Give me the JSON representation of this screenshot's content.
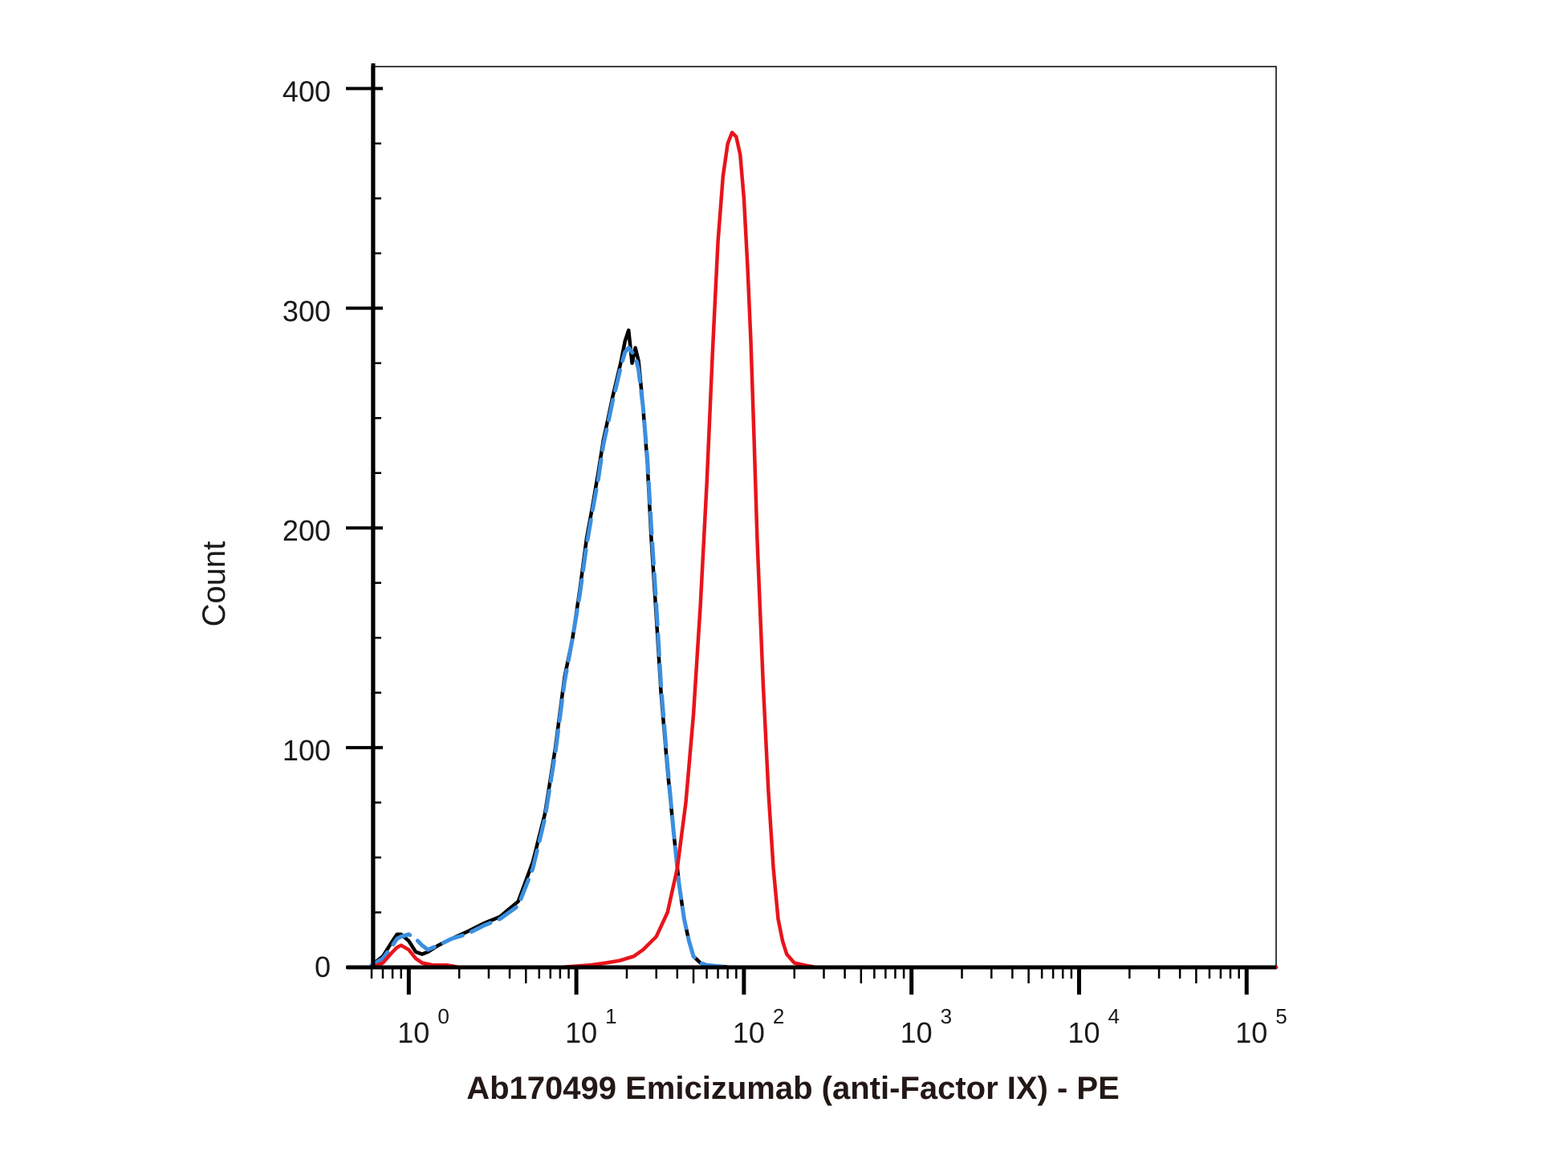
{
  "chart_data": {
    "type": "line",
    "xlabel": "Ab170499 Emicizumab (anti-Factor IX) - PE",
    "ylabel": "Count",
    "x_scale": "log",
    "xlim": [
      0.6,
      150000
    ],
    "ylim": [
      0,
      410
    ],
    "yticks": [
      {
        "value": 0,
        "label": "0"
      },
      {
        "value": 100,
        "label": "100"
      },
      {
        "value": 200,
        "label": "200"
      },
      {
        "value": 300,
        "label": "300"
      },
      {
        "value": 400,
        "label": "400"
      }
    ],
    "xticks": [
      {
        "value": 1,
        "base": "10",
        "exp": "0"
      },
      {
        "value": 10,
        "base": "10",
        "exp": "1"
      },
      {
        "value": 100,
        "base": "10",
        "exp": "2"
      },
      {
        "value": 1000,
        "base": "10",
        "exp": "3"
      },
      {
        "value": 10000,
        "base": "10",
        "exp": "4"
      },
      {
        "value": 100000,
        "base": "10",
        "exp": "5"
      }
    ],
    "grid": false,
    "series": [
      {
        "color": "#000000",
        "style": "solid",
        "x": [
          0.6,
          0.7,
          0.8,
          0.85,
          0.9,
          1.0,
          1.1,
          1.2,
          1.3,
          1.5,
          1.8,
          2.2,
          2.8,
          3.5,
          4.5,
          5.5,
          6.5,
          7.5,
          8.5,
          9.5,
          10.5,
          11.5,
          12.5,
          13.5,
          14.5,
          15.5,
          16.5,
          17.5,
          18.5,
          19.5,
          20.5,
          21.5,
          22.5,
          23.5,
          25,
          26.5,
          28,
          30,
          32,
          35,
          38,
          41,
          44,
          47,
          50,
          55,
          60,
          70,
          85,
          100,
          130,
          200,
          500,
          2000,
          10000,
          50000,
          150000
        ],
        "y": [
          1,
          5,
          12,
          15,
          15,
          12,
          7,
          6,
          7,
          10,
          13,
          16,
          20,
          23,
          30,
          48,
          70,
          100,
          132,
          150,
          172,
          195,
          210,
          225,
          240,
          250,
          260,
          268,
          276,
          285,
          290,
          275,
          282,
          276,
          255,
          230,
          195,
          160,
          125,
          90,
          62,
          38,
          22,
          12,
          5,
          2,
          1,
          0.5,
          0,
          0,
          0,
          0,
          0,
          0,
          0,
          0,
          0
        ]
      },
      {
        "color": "#3b8fdf",
        "style": "dashed",
        "x": [
          0.6,
          0.7,
          0.8,
          0.85,
          0.9,
          1.0,
          1.1,
          1.2,
          1.3,
          1.5,
          1.8,
          2.2,
          2.8,
          3.5,
          4.5,
          5.5,
          6.5,
          7.5,
          8.5,
          9.5,
          10.5,
          11.5,
          12.5,
          13.5,
          14.5,
          15.5,
          16.5,
          17.5,
          18.5,
          19.5,
          20.5,
          21.5,
          22.5,
          23.5,
          25,
          26.5,
          28,
          30,
          32,
          35,
          38,
          41,
          44,
          47,
          50,
          55,
          60,
          70,
          85,
          100,
          130,
          200,
          500,
          2000,
          10000,
          50000,
          150000
        ],
        "y": [
          1,
          4,
          10,
          13,
          14,
          15,
          13,
          10,
          8,
          10,
          13,
          15,
          19,
          22,
          28,
          45,
          68,
          98,
          130,
          150,
          170,
          192,
          208,
          222,
          238,
          248,
          258,
          266,
          274,
          280,
          282,
          280,
          278,
          272,
          255,
          232,
          200,
          165,
          128,
          92,
          62,
          38,
          22,
          12,
          5,
          2,
          1,
          0.5,
          0,
          0,
          0,
          0,
          0,
          0,
          0,
          0,
          0
        ]
      },
      {
        "color": "#e8141b",
        "style": "solid",
        "x": [
          0.6,
          0.7,
          0.8,
          0.85,
          0.9,
          1.0,
          1.1,
          1.2,
          1.4,
          1.7,
          2.0,
          3,
          5,
          8,
          12,
          15,
          18,
          22,
          25,
          30,
          35,
          40,
          45,
          50,
          55,
          60,
          65,
          70,
          75,
          80,
          85,
          90,
          95,
          100,
          105,
          110,
          115,
          120,
          130,
          140,
          150,
          160,
          170,
          180,
          200,
          230,
          270,
          350,
          500,
          1000,
          10000,
          100000,
          150000
        ],
        "y": [
          0,
          2,
          7,
          9,
          10,
          8,
          4,
          2,
          1,
          1,
          0,
          0,
          0,
          0,
          1,
          2,
          3,
          5,
          8,
          14,
          25,
          45,
          75,
          115,
          165,
          220,
          280,
          330,
          360,
          375,
          380,
          378,
          370,
          350,
          320,
          285,
          240,
          195,
          130,
          80,
          45,
          22,
          12,
          6,
          2,
          1,
          0,
          0,
          0,
          0,
          0,
          0,
          0
        ]
      }
    ]
  }
}
